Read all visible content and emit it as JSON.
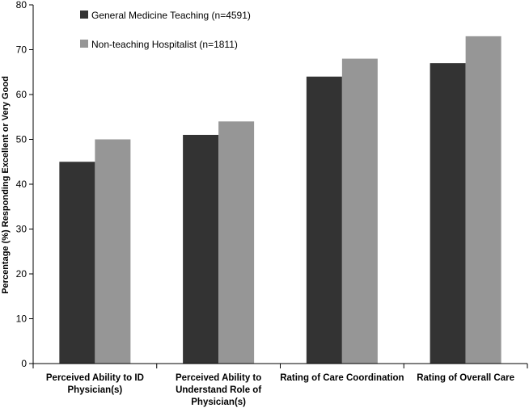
{
  "chart_data": {
    "type": "bar",
    "title": "",
    "ylabel": "Percentage (%) Responding Excellent or Very Good",
    "xlabel": "",
    "ylim": [
      0,
      80
    ],
    "yticks": [
      0,
      10,
      20,
      30,
      40,
      50,
      60,
      70,
      80
    ],
    "grid": false,
    "legend_position": "top-left",
    "categories": [
      [
        "Perceived Ability to ID",
        "Physician(s)"
      ],
      [
        "Perceived Ability to",
        "Understand Role of",
        "Physician(s)"
      ],
      [
        "Rating of Care Coordination"
      ],
      [
        "Rating of Overall Care"
      ]
    ],
    "series": [
      {
        "name": "General Medicine Teaching (n=4591)",
        "color": "#333333",
        "values": [
          45,
          51,
          64,
          67
        ]
      },
      {
        "name": "Non-teaching Hospitalist (n=1811)",
        "color": "#969696",
        "values": [
          50,
          54,
          68,
          73
        ]
      }
    ]
  }
}
